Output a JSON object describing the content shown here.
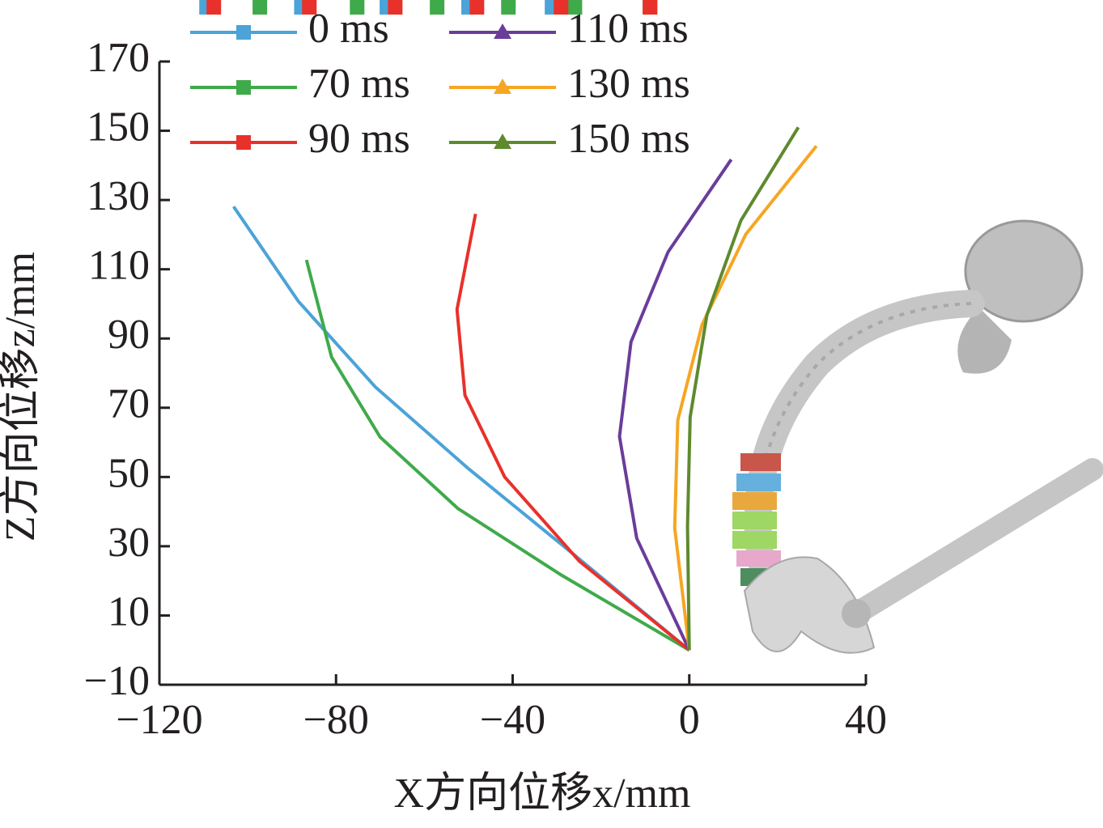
{
  "chart_data": {
    "type": "line",
    "x_label": "X方向位移x/mm",
    "y_label": "Z方向位移z/mm",
    "xlim": [
      -120,
      40
    ],
    "ylim": [
      -10,
      170
    ],
    "xticks": [
      {
        "value": -120,
        "label": "−120"
      },
      {
        "value": -80,
        "label": "−80"
      },
      {
        "value": -40,
        "label": "−40"
      },
      0,
      40
    ],
    "yticks": [
      {
        "value": -10,
        "label": "−10"
      },
      10,
      30,
      50,
      70,
      90,
      110,
      130,
      150,
      170
    ],
    "series": [
      {
        "name": "0 ms",
        "color": "#4ba3d8",
        "marker": "square",
        "x": [
          -103.2,
          -88.5,
          -71.1,
          -50,
          -26.8,
          0
        ],
        "values": [
          128.1,
          100.7,
          76,
          52.4,
          28.3,
          0
        ]
      },
      {
        "name": "70 ms",
        "color": "#3faa4a",
        "marker": "square",
        "x": [
          -86.7,
          -81,
          -70,
          -52.4,
          -29,
          0
        ],
        "values": [
          112.7,
          84.6,
          61.5,
          40.9,
          21.7,
          0
        ]
      },
      {
        "name": "90 ms",
        "color": "#e8312a",
        "marker": "square",
        "x": [
          -48.4,
          -52.6,
          -50.8,
          -41.8,
          -24.9,
          0
        ],
        "values": [
          126,
          98.4,
          73.6,
          50,
          25.7,
          0
        ]
      },
      {
        "name": "110 ms",
        "color": "#6a3d9a",
        "marker": "triangle",
        "x": [
          9.5,
          -4.8,
          -13.2,
          -15.8,
          -11.9,
          0
        ],
        "values": [
          141.7,
          115,
          89,
          61.7,
          32.3,
          0
        ]
      },
      {
        "name": "130 ms",
        "color": "#f5a623",
        "marker": "triangle",
        "x": [
          28.8,
          12.8,
          2.9,
          -2.6,
          -3.3,
          0
        ],
        "values": [
          145.6,
          120.1,
          94,
          66.4,
          35.3,
          0
        ]
      },
      {
        "name": "150 ms",
        "color": "#5e8a2e",
        "marker": "triangle",
        "x": [
          24.7,
          11.7,
          4,
          0.2,
          -0.4,
          0
        ],
        "values": [
          151,
          124.1,
          96.8,
          67.3,
          35.8,
          0
        ]
      }
    ]
  }
}
